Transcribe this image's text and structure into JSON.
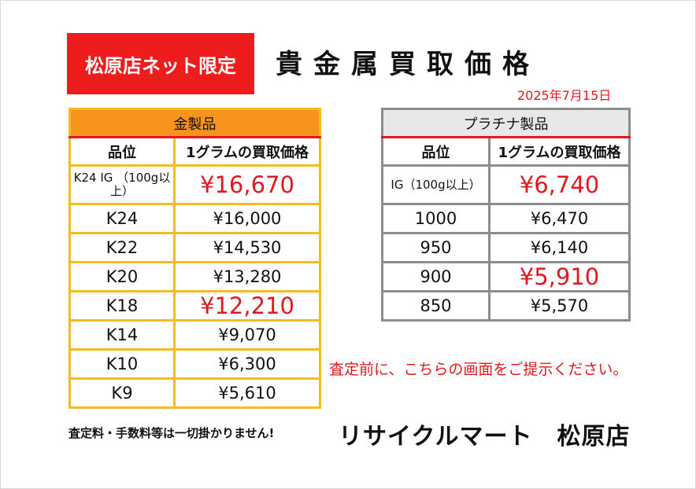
{
  "badge": "松原店ネット限定",
  "title": "貴金属買取価格",
  "date": "2025年7月15日",
  "gold": {
    "header": "金製品",
    "col_grade": "品位",
    "col_price": "1グラムの買取価格",
    "rows": [
      {
        "grade": "K24 IG （100g以上）",
        "price": "¥16,670"
      },
      {
        "grade": "K24",
        "price": "¥16,000"
      },
      {
        "grade": "K22",
        "price": "¥14,530"
      },
      {
        "grade": "K20",
        "price": "¥13,280"
      },
      {
        "grade": "K18",
        "price": "¥12,210"
      },
      {
        "grade": "K14",
        "price": "¥9,070"
      },
      {
        "grade": "K10",
        "price": "¥6,300"
      },
      {
        "grade": "K9",
        "price": "¥5,610"
      }
    ]
  },
  "platinum": {
    "header": "プラチナ製品",
    "col_grade": "品位",
    "col_price": "1グラムの買取価格",
    "rows": [
      {
        "grade": "IG（100g以上）",
        "price": "¥6,740"
      },
      {
        "grade": "1000",
        "price": "¥6,470"
      },
      {
        "grade": "950",
        "price": "¥6,140"
      },
      {
        "grade": "900",
        "price": "¥5,910"
      },
      {
        "grade": "850",
        "price": "¥5,570"
      }
    ]
  },
  "notice": "査定前に、こちらの画面をご提示ください。",
  "fee_note": "査定料・手数料等は一切掛かりません!",
  "store_name": "リサイクルマート　松原店",
  "colors": {
    "accent_red": "#e0191f",
    "gold_header": "#f7941d",
    "gold_border": "#f4bc1c",
    "platinum_header": "#e8e8e8",
    "platinum_border": "#8c8c8c"
  }
}
